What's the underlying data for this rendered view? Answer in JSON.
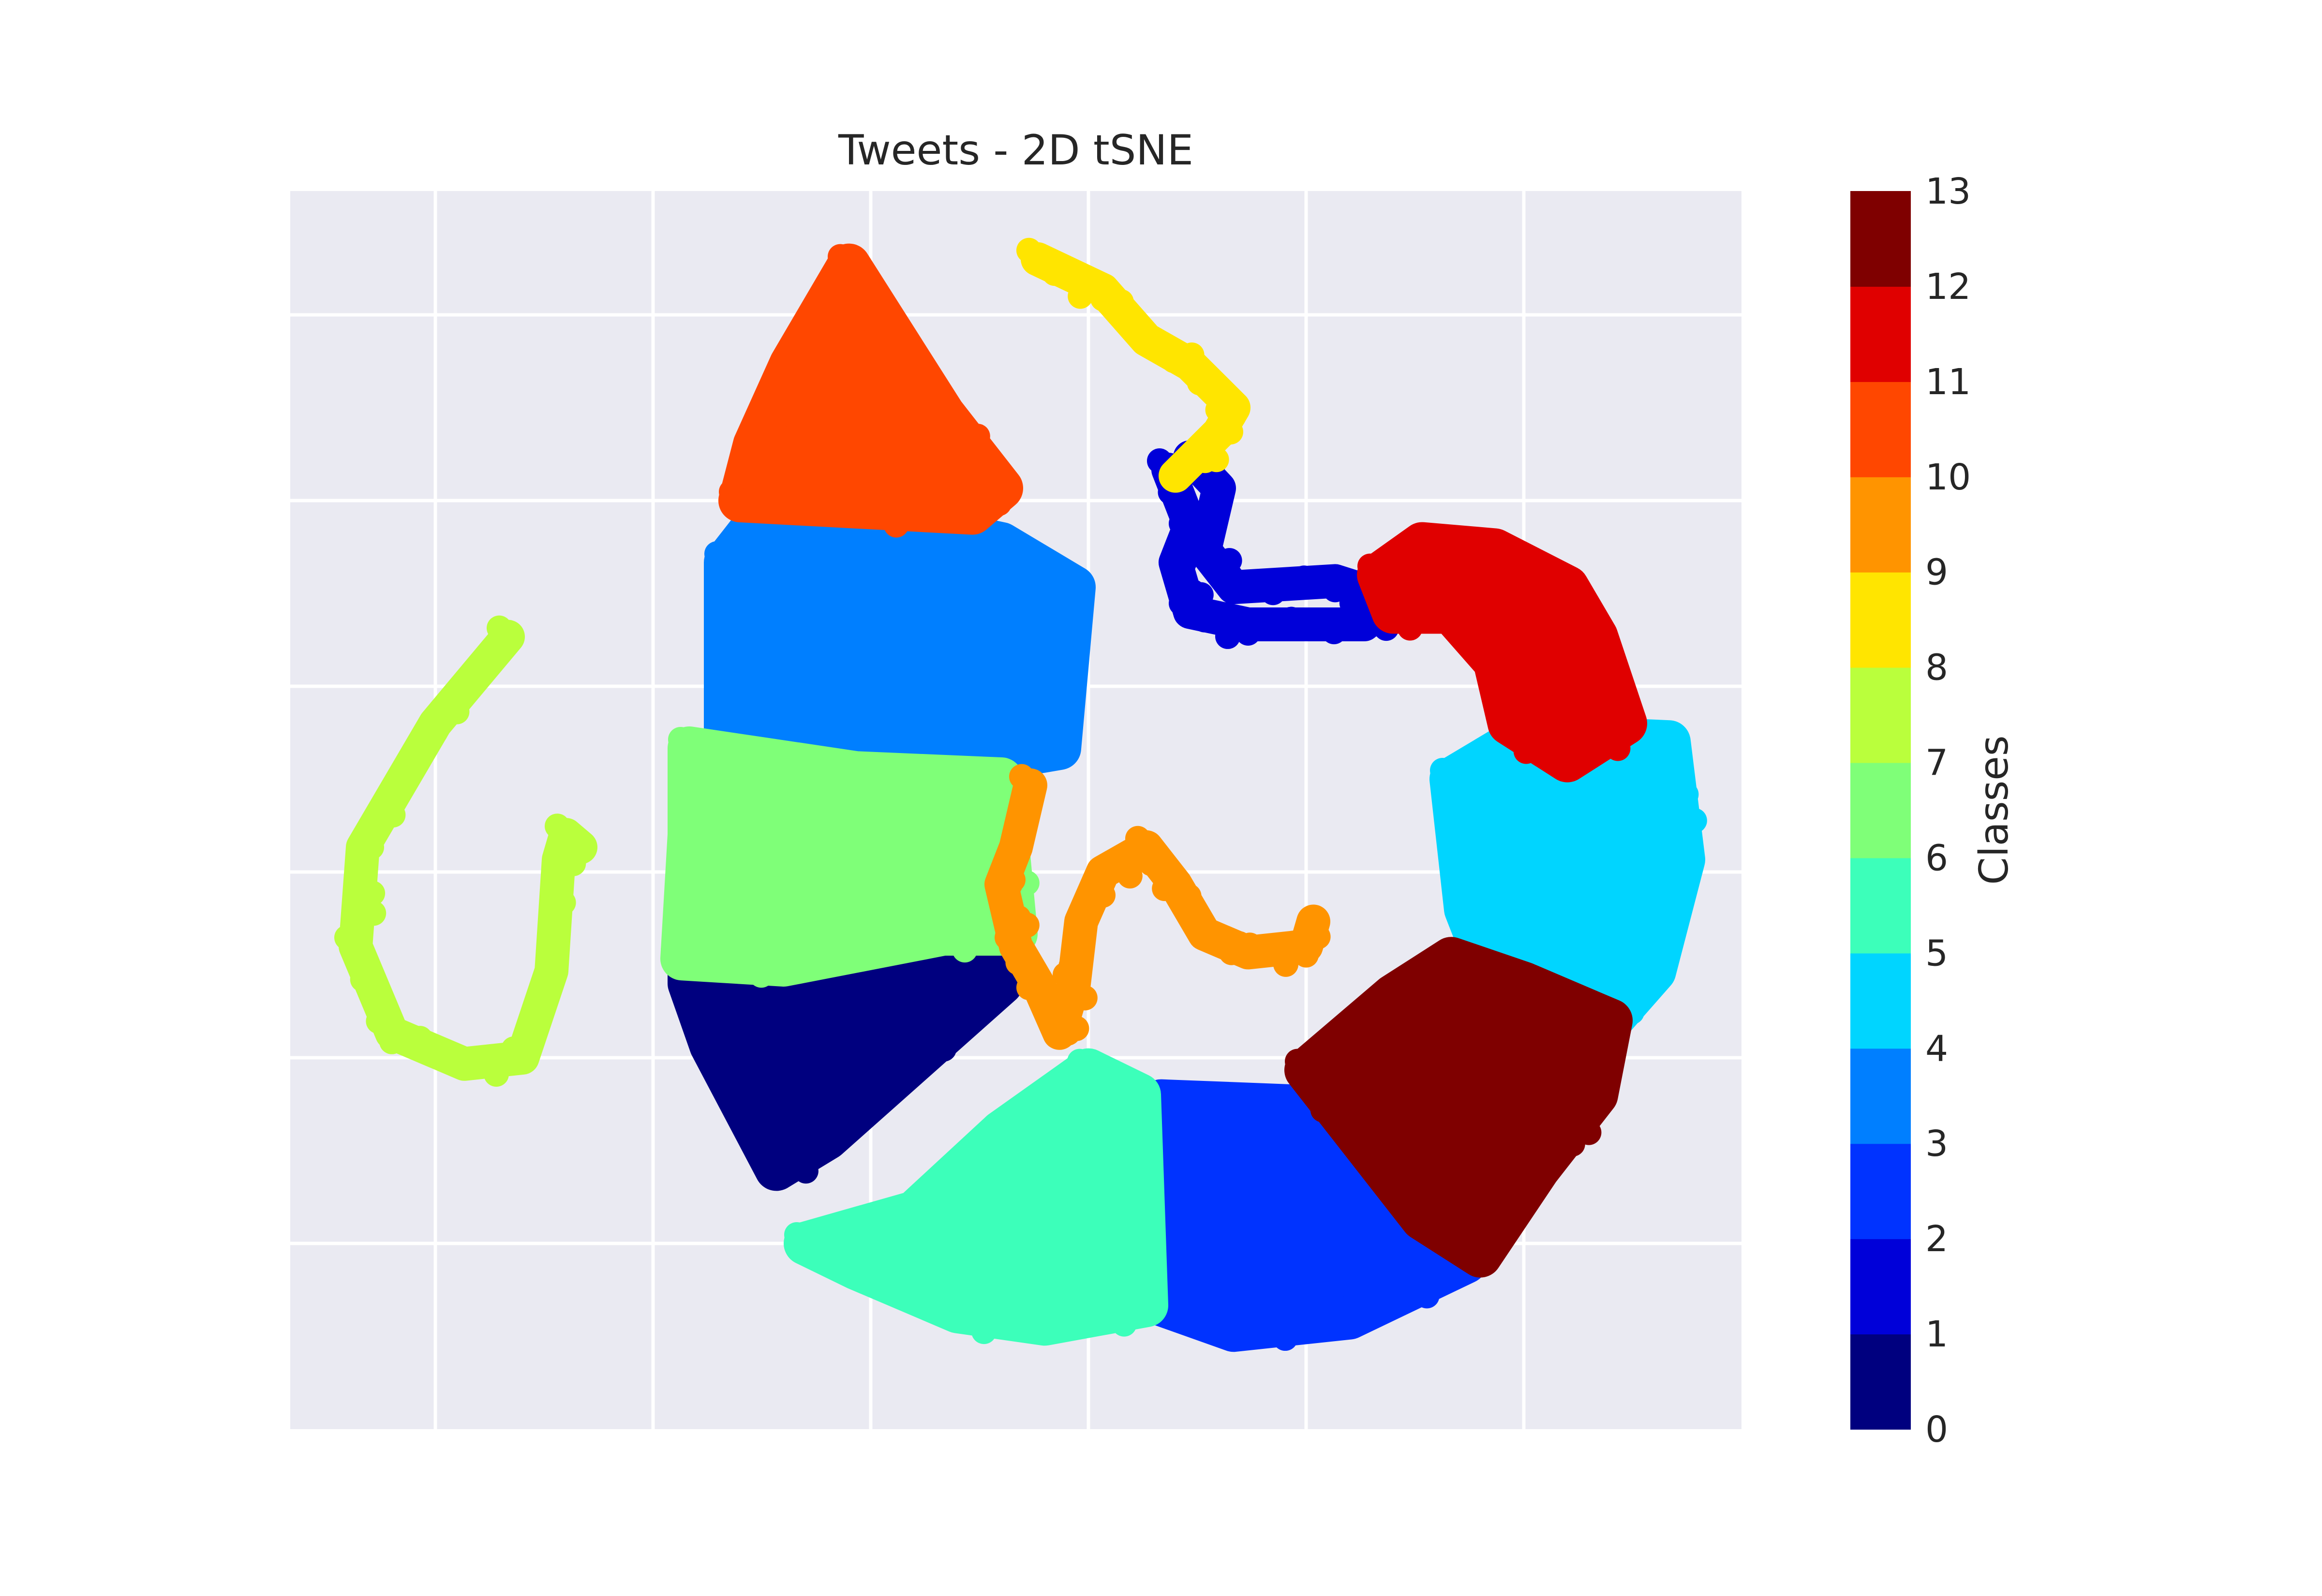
{
  "chart_data": {
    "type": "scatter",
    "title": "Tweets - 2D tSNE",
    "xlabel": "",
    "ylabel": "",
    "x_tick_labels_visible": false,
    "y_tick_labels_visible": false,
    "grid": true,
    "background": "#EAEAF2",
    "colormap": "jet",
    "colorbar": {
      "label": "Classes",
      "ticks": [
        "0",
        "1",
        "2",
        "3",
        "4",
        "5",
        "6",
        "7",
        "8",
        "9",
        "10",
        "11",
        "12",
        "13"
      ],
      "colors": [
        "#00007F",
        "#0000D9",
        "#0033FF",
        "#007FFF",
        "#00D5FF",
        "#3CFFBA",
        "#7FFF78",
        "#BAFF3C",
        "#FFE500",
        "#FF9400",
        "#FF4700",
        "#E00000",
        "#7F0000"
      ]
    },
    "xlim": [
      0,
      100
    ],
    "ylim": [
      0,
      100
    ],
    "series": [
      {
        "class": 0,
        "color": "#00007F",
        "path": [
          [
            27.5,
            36
          ],
          [
            29,
            31
          ],
          [
            33.5,
            21
          ],
          [
            37,
            23.5
          ],
          [
            49,
            36
          ],
          [
            47.5,
            40.5
          ],
          [
            42,
            37.5
          ],
          [
            27.5,
            37.5
          ]
        ]
      },
      {
        "class": 1,
        "color": "#0000D9",
        "path": [
          [
            60.5,
            77.5
          ],
          [
            62,
            73
          ],
          [
            61,
            70
          ],
          [
            62,
            66
          ],
          [
            66,
            65
          ],
          [
            74,
            65
          ],
          [
            76,
            67
          ],
          [
            72,
            68.5
          ],
          [
            65,
            68
          ],
          [
            63,
            71
          ],
          [
            64,
            76
          ],
          [
            62,
            78.5
          ]
        ]
      },
      {
        "class": 2,
        "color": "#0033FF",
        "path": [
          [
            58.5,
            26
          ],
          [
            59,
            10.5
          ],
          [
            65,
            8
          ],
          [
            73,
            9
          ],
          [
            81,
            13.5
          ],
          [
            76,
            18
          ],
          [
            71,
            26
          ],
          [
            60,
            26.5
          ]
        ]
      },
      {
        "class": 3,
        "color": "#007FFF",
        "path": [
          [
            30,
            70
          ],
          [
            32,
            73
          ],
          [
            41,
            73.5
          ],
          [
            49,
            71.5
          ],
          [
            54,
            68
          ],
          [
            53,
            55
          ],
          [
            43,
            53
          ],
          [
            30,
            55
          ]
        ]
      },
      {
        "class": 4,
        "color": "#00D5FF",
        "path": [
          [
            80,
            52.5
          ],
          [
            85,
            56
          ],
          [
            95,
            55.5
          ],
          [
            96,
            46
          ],
          [
            94,
            37
          ],
          [
            91,
            33
          ],
          [
            83,
            36
          ],
          [
            81,
            42
          ]
        ]
      },
      {
        "class": 5,
        "color": "#3CFFBA",
        "path": [
          [
            35.5,
            15
          ],
          [
            43,
            17.5
          ],
          [
            49,
            24
          ],
          [
            55,
            29
          ],
          [
            58.5,
            27
          ],
          [
            59,
            10
          ],
          [
            52,
            8.5
          ],
          [
            46,
            9.5
          ],
          [
            39,
            13
          ]
        ]
      },
      {
        "class": 6,
        "color": "#7FFF78",
        "path": [
          [
            27.5,
            55
          ],
          [
            39,
            53
          ],
          [
            49,
            52.5
          ],
          [
            50,
            40
          ],
          [
            45,
            40
          ],
          [
            34,
            37.5
          ],
          [
            27,
            38
          ],
          [
            27.5,
            48
          ]
        ]
      },
      {
        "class": 7,
        "color": "#BAFF3C",
        "path": [
          [
            15,
            64
          ],
          [
            10,
            57
          ],
          [
            5,
            47
          ],
          [
            4.5,
            39
          ],
          [
            7,
            32
          ],
          [
            12,
            29.5
          ],
          [
            16,
            30
          ],
          [
            18,
            37
          ],
          [
            18.5,
            46
          ],
          [
            19,
            48
          ],
          [
            20,
            47
          ]
        ]
      },
      {
        "class": 8,
        "color": "#FFE500",
        "path": [
          [
            51.5,
            94.5
          ],
          [
            56,
            92
          ],
          [
            59,
            88
          ],
          [
            62,
            86
          ],
          [
            65,
            82.5
          ],
          [
            64,
            80.5
          ],
          [
            61,
            77
          ]
        ]
      },
      {
        "class": 9,
        "color": "#FF9400",
        "path": [
          [
            51,
            52
          ],
          [
            50,
            47
          ],
          [
            49,
            44
          ],
          [
            50,
            39
          ],
          [
            51.5,
            36
          ],
          [
            53,
            32
          ],
          [
            54,
            36
          ],
          [
            54.5,
            41
          ],
          [
            56,
            45
          ],
          [
            59,
            47
          ],
          [
            61,
            44
          ],
          [
            63,
            40
          ],
          [
            66,
            38.5
          ],
          [
            70,
            39
          ],
          [
            70.5,
            41
          ]
        ]
      },
      {
        "class": 10,
        "color": "#FF4700",
        "path": [
          [
            38.5,
            94
          ],
          [
            34.5,
            86
          ],
          [
            32,
            79.5
          ],
          [
            31,
            75
          ],
          [
            47,
            74
          ],
          [
            49,
            76
          ],
          [
            45,
            82
          ]
        ]
      },
      {
        "class": 11,
        "color": "#E00000",
        "path": [
          [
            75,
            69
          ],
          [
            78,
            71.5
          ],
          [
            83,
            71
          ],
          [
            88,
            68
          ],
          [
            90,
            64
          ],
          [
            92,
            57
          ],
          [
            88,
            54
          ],
          [
            84,
            57
          ],
          [
            83,
            62
          ],
          [
            80,
            66
          ],
          [
            76,
            66
          ]
        ]
      },
      {
        "class": 12,
        "color": "#7F0000",
        "path": [
          [
            70,
            29
          ],
          [
            76,
            35
          ],
          [
            80,
            38
          ],
          [
            85,
            36
          ],
          [
            91,
            33
          ],
          [
            90,
            27
          ],
          [
            86,
            21
          ],
          [
            82,
            14
          ],
          [
            78,
            17
          ],
          [
            74,
            23
          ]
        ]
      }
    ]
  }
}
